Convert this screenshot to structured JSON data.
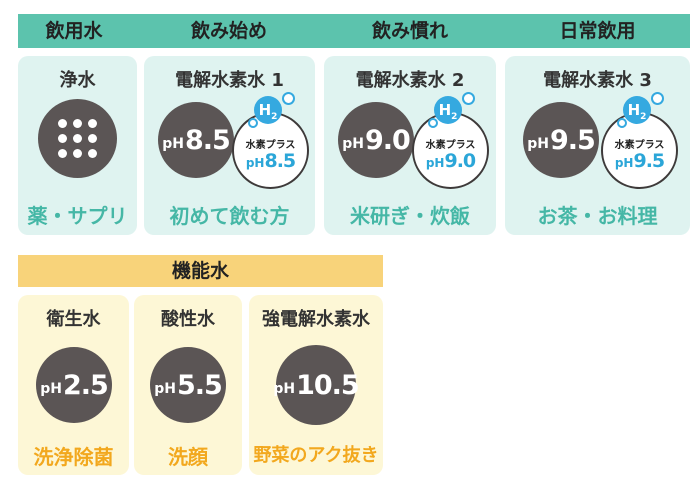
{
  "header": {
    "categories": [
      "飲用水",
      "飲み始め",
      "飲み慣れ",
      "日常飲用"
    ]
  },
  "colors": {
    "header_bar": "#5cc3ad",
    "card_teal": "#dff3f0",
    "card_yellow": "#fdf7d6",
    "functional_bar": "#f8d37a",
    "use_teal": "#45b7a6",
    "use_orange": "#f2a81e",
    "ph_circle": "#5b5555",
    "hydrogen_blue": "#2ba6d8"
  },
  "drinking_cards": [
    {
      "title": "浄水",
      "icon": "filter-dots-icon",
      "use": "薬・サプリ"
    },
    {
      "title": "電解水素水 1",
      "ph_prefix": "pH",
      "ph_value": "8.5",
      "plus_label": "水素プラス",
      "plus_ph_value": "8.5",
      "use": "初めて飲む方"
    },
    {
      "title": "電解水素水 2",
      "ph_prefix": "pH",
      "ph_value": "9.0",
      "plus_label": "水素プラス",
      "plus_ph_value": "9.0",
      "use": "米研ぎ・炊飯"
    },
    {
      "title": "電解水素水 3",
      "ph_prefix": "pH",
      "ph_value": "9.5",
      "plus_label": "水素プラス",
      "plus_ph_value": "9.5",
      "use": "お茶・お料理"
    }
  ],
  "hydrogen_badge": {
    "symbol": "H",
    "subscript": "2",
    "icon": "hydrogen-h2-icon"
  },
  "functional": {
    "title": "機能水",
    "cards": [
      {
        "title": "衛生水",
        "ph_prefix": "pH",
        "ph_value": "2.5",
        "use": "洗浄除菌"
      },
      {
        "title": "酸性水",
        "ph_prefix": "pH",
        "ph_value": "5.5",
        "use": "洗顔"
      },
      {
        "title": "強電解水素水",
        "ph_prefix": "pH",
        "ph_value": "10.5",
        "use": "野菜のアク抜き"
      }
    ]
  }
}
